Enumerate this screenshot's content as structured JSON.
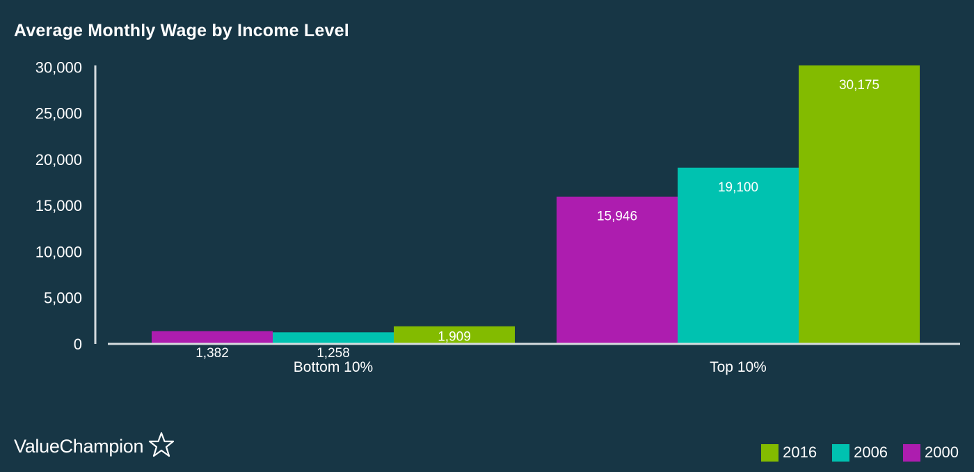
{
  "chart_data": {
    "type": "bar",
    "title": "Average Monthly Wage by Income Level",
    "categories": [
      "Bottom 10%",
      "Top 10%"
    ],
    "series": [
      {
        "name": "2000",
        "color": "#AD1DAF",
        "values": [
          1382,
          15946
        ],
        "labels": [
          "1,382",
          "15,946"
        ]
      },
      {
        "name": "2006",
        "color": "#00C2B0",
        "values": [
          1258,
          19100
        ],
        "labels": [
          "1,258",
          "19,100"
        ]
      },
      {
        "name": "2016",
        "color": "#83BB00",
        "values": [
          1909,
          30175
        ],
        "labels": [
          "1,909",
          "30,175"
        ]
      }
    ],
    "yticks": [
      0,
      5000,
      10000,
      15000,
      20000,
      25000,
      30000
    ],
    "ytick_labels": [
      "0",
      "5,000",
      "10,000",
      "15,000",
      "20,000",
      "25,000",
      "30,000"
    ],
    "ylim": [
      0,
      30175
    ],
    "xlabel": "",
    "ylabel": "",
    "grid": false,
    "legend_position": "bottom-right",
    "legend_order": [
      "2016",
      "2006",
      "2000"
    ]
  },
  "brand": {
    "name": "ValueChampion",
    "icon": "star-outline-icon"
  },
  "colors": {
    "background": "#173645",
    "axis": "#D6DCDF",
    "text": "#FFFFFF"
  }
}
